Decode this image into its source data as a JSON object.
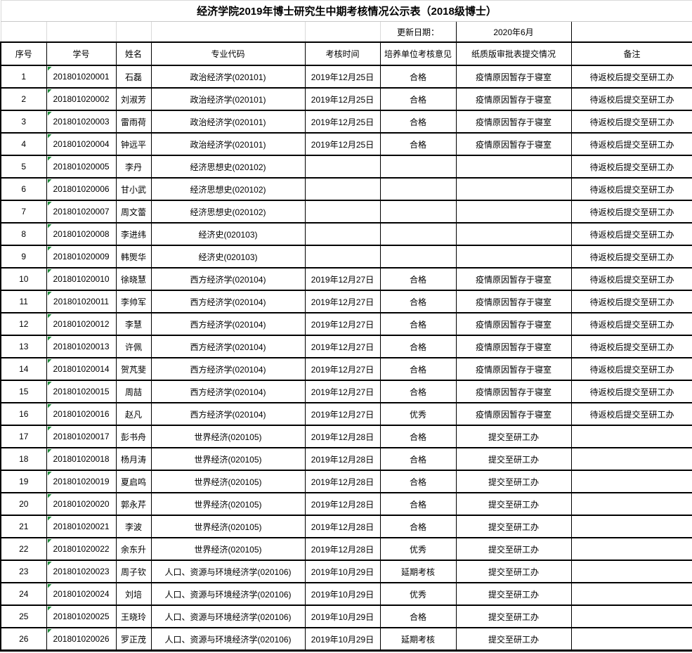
{
  "title": "经济学院2019年博士研究生中期考核情况公示表（2018级博士）",
  "update": {
    "label": "更新日期：",
    "value": "2020年6月"
  },
  "table": {
    "headers": [
      "序号",
      "学号",
      "姓名",
      "专业代码",
      "考核时间",
      "培养单位考核意见",
      "纸质版审批表提交情况",
      "备注"
    ],
    "rows": [
      [
        "1",
        "201801020001",
        "石磊",
        "政治经济学(020101)",
        "2019年12月25日",
        "合格",
        "疫情原因暂存于寝室",
        "待返校后提交至研工办"
      ],
      [
        "2",
        "201801020002",
        "刘淑芳",
        "政治经济学(020101)",
        "2019年12月25日",
        "合格",
        "疫情原因暂存于寝室",
        "待返校后提交至研工办"
      ],
      [
        "3",
        "201801020003",
        "雷雨荷",
        "政治经济学(020101)",
        "2019年12月25日",
        "合格",
        "疫情原因暂存于寝室",
        "待返校后提交至研工办"
      ],
      [
        "4",
        "201801020004",
        "钟远平",
        "政治经济学(020101)",
        "2019年12月25日",
        "合格",
        "疫情原因暂存于寝室",
        "待返校后提交至研工办"
      ],
      [
        "5",
        "201801020005",
        "李丹",
        "经济思想史(020102)",
        "",
        "",
        "",
        "待返校后提交至研工办"
      ],
      [
        "6",
        "201801020006",
        "甘小武",
        "经济思想史(020102)",
        "",
        "",
        "",
        "待返校后提交至研工办"
      ],
      [
        "7",
        "201801020007",
        "周文蕾",
        "经济思想史(020102)",
        "",
        "",
        "",
        "待返校后提交至研工办"
      ],
      [
        "8",
        "201801020008",
        "李进纬",
        "经济史(020103)",
        "",
        "",
        "",
        "待返校后提交至研工办"
      ],
      [
        "9",
        "201801020009",
        "韩煚华",
        "经济史(020103)",
        "",
        "",
        "",
        "待返校后提交至研工办"
      ],
      [
        "10",
        "201801020010",
        "徐晓慧",
        "西方经济学(020104)",
        "2019年12月27日",
        "合格",
        "疫情原因暂存于寝室",
        "待返校后提交至研工办"
      ],
      [
        "11",
        "201801020011",
        "李帅军",
        "西方经济学(020104)",
        "2019年12月27日",
        "合格",
        "疫情原因暂存于寝室",
        "待返校后提交至研工办"
      ],
      [
        "12",
        "201801020012",
        "李慧",
        "西方经济学(020104)",
        "2019年12月27日",
        "合格",
        "疫情原因暂存于寝室",
        "待返校后提交至研工办"
      ],
      [
        "13",
        "201801020013",
        "许佩",
        "西方经济学(020104)",
        "2019年12月27日",
        "合格",
        "疫情原因暂存于寝室",
        "待返校后提交至研工办"
      ],
      [
        "14",
        "201801020014",
        "贺芃斐",
        "西方经济学(020104)",
        "2019年12月27日",
        "合格",
        "疫情原因暂存于寝室",
        "待返校后提交至研工办"
      ],
      [
        "15",
        "201801020015",
        "周喆",
        "西方经济学(020104)",
        "2019年12月27日",
        "合格",
        "疫情原因暂存于寝室",
        "待返校后提交至研工办"
      ],
      [
        "16",
        "201801020016",
        "赵凡",
        "西方经济学(020104)",
        "2019年12月27日",
        "优秀",
        "疫情原因暂存于寝室",
        "待返校后提交至研工办"
      ],
      [
        "17",
        "201801020017",
        "彭书舟",
        "世界经济(020105)",
        "2019年12月28日",
        "合格",
        "提交至研工办",
        ""
      ],
      [
        "18",
        "201801020018",
        "杨月涛",
        "世界经济(020105)",
        "2019年12月28日",
        "合格",
        "提交至研工办",
        ""
      ],
      [
        "19",
        "201801020019",
        "夏启鸣",
        "世界经济(020105)",
        "2019年12月28日",
        "合格",
        "提交至研工办",
        ""
      ],
      [
        "20",
        "201801020020",
        "郭永芹",
        "世界经济(020105)",
        "2019年12月28日",
        "合格",
        "提交至研工办",
        ""
      ],
      [
        "21",
        "201801020021",
        "李波",
        "世界经济(020105)",
        "2019年12月28日",
        "合格",
        "提交至研工办",
        ""
      ],
      [
        "22",
        "201801020022",
        "余东升",
        "世界经济(020105)",
        "2019年12月28日",
        "优秀",
        "提交至研工办",
        ""
      ],
      [
        "23",
        "201801020023",
        "周子钦",
        "人口、资源与环境经济学(020106)",
        "2019年10月29日",
        "延期考核",
        "提交至研工办",
        ""
      ],
      [
        "24",
        "201801020024",
        "刘培",
        "人口、资源与环境经济学(020106)",
        "2019年10月29日",
        "优秀",
        "提交至研工办",
        ""
      ],
      [
        "25",
        "201801020025",
        "王晓玲",
        "人口、资源与环境经济学(020106)",
        "2019年10月29日",
        "合格",
        "提交至研工办",
        ""
      ],
      [
        "26",
        "201801020026",
        "罗正茂",
        "人口、资源与环境经济学(020106)",
        "2019年10月29日",
        "延期考核",
        "提交至研工办",
        ""
      ]
    ]
  },
  "icons": {
    "student_id_flag": "green-triangle-text-format-indicator"
  },
  "colors": {
    "grid_black": "#000000",
    "grid_gray": "#d9d9d9",
    "indicator_green": "#1e8b3a",
    "background": "#ffffff",
    "text": "#000000"
  }
}
